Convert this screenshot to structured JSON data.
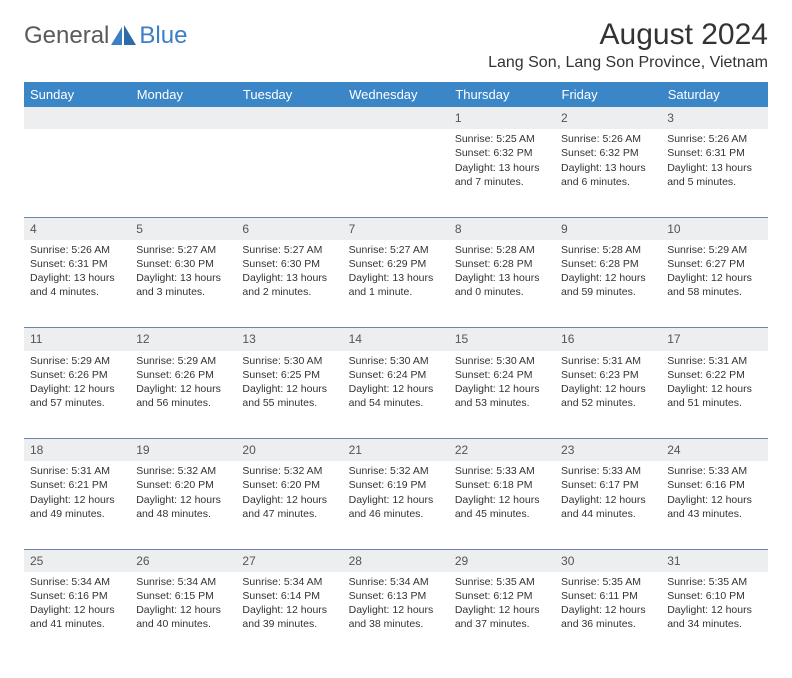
{
  "brand": {
    "part1": "General",
    "part2": "Blue",
    "text_color": "#5a5a5a",
    "accent_color": "#3b7fc4"
  },
  "title": "August 2024",
  "location": "Lang Son, Lang Son Province, Vietnam",
  "header_bg": "#3b86c7",
  "daynum_bg": "#eceeef",
  "border_color": "#6a87a8",
  "weekdays": [
    "Sunday",
    "Monday",
    "Tuesday",
    "Wednesday",
    "Thursday",
    "Friday",
    "Saturday"
  ],
  "weeks": [
    {
      "nums": [
        "",
        "",
        "",
        "",
        "1",
        "2",
        "3"
      ],
      "cells": [
        null,
        null,
        null,
        null,
        {
          "sunrise": "5:25 AM",
          "sunset": "6:32 PM",
          "daylight": "13 hours and 7 minutes."
        },
        {
          "sunrise": "5:26 AM",
          "sunset": "6:32 PM",
          "daylight": "13 hours and 6 minutes."
        },
        {
          "sunrise": "5:26 AM",
          "sunset": "6:31 PM",
          "daylight": "13 hours and 5 minutes."
        }
      ]
    },
    {
      "nums": [
        "4",
        "5",
        "6",
        "7",
        "8",
        "9",
        "10"
      ],
      "cells": [
        {
          "sunrise": "5:26 AM",
          "sunset": "6:31 PM",
          "daylight": "13 hours and 4 minutes."
        },
        {
          "sunrise": "5:27 AM",
          "sunset": "6:30 PM",
          "daylight": "13 hours and 3 minutes."
        },
        {
          "sunrise": "5:27 AM",
          "sunset": "6:30 PM",
          "daylight": "13 hours and 2 minutes."
        },
        {
          "sunrise": "5:27 AM",
          "sunset": "6:29 PM",
          "daylight": "13 hours and 1 minute."
        },
        {
          "sunrise": "5:28 AM",
          "sunset": "6:28 PM",
          "daylight": "13 hours and 0 minutes."
        },
        {
          "sunrise": "5:28 AM",
          "sunset": "6:28 PM",
          "daylight": "12 hours and 59 minutes."
        },
        {
          "sunrise": "5:29 AM",
          "sunset": "6:27 PM",
          "daylight": "12 hours and 58 minutes."
        }
      ]
    },
    {
      "nums": [
        "11",
        "12",
        "13",
        "14",
        "15",
        "16",
        "17"
      ],
      "cells": [
        {
          "sunrise": "5:29 AM",
          "sunset": "6:26 PM",
          "daylight": "12 hours and 57 minutes."
        },
        {
          "sunrise": "5:29 AM",
          "sunset": "6:26 PM",
          "daylight": "12 hours and 56 minutes."
        },
        {
          "sunrise": "5:30 AM",
          "sunset": "6:25 PM",
          "daylight": "12 hours and 55 minutes."
        },
        {
          "sunrise": "5:30 AM",
          "sunset": "6:24 PM",
          "daylight": "12 hours and 54 minutes."
        },
        {
          "sunrise": "5:30 AM",
          "sunset": "6:24 PM",
          "daylight": "12 hours and 53 minutes."
        },
        {
          "sunrise": "5:31 AM",
          "sunset": "6:23 PM",
          "daylight": "12 hours and 52 minutes."
        },
        {
          "sunrise": "5:31 AM",
          "sunset": "6:22 PM",
          "daylight": "12 hours and 51 minutes."
        }
      ]
    },
    {
      "nums": [
        "18",
        "19",
        "20",
        "21",
        "22",
        "23",
        "24"
      ],
      "cells": [
        {
          "sunrise": "5:31 AM",
          "sunset": "6:21 PM",
          "daylight": "12 hours and 49 minutes."
        },
        {
          "sunrise": "5:32 AM",
          "sunset": "6:20 PM",
          "daylight": "12 hours and 48 minutes."
        },
        {
          "sunrise": "5:32 AM",
          "sunset": "6:20 PM",
          "daylight": "12 hours and 47 minutes."
        },
        {
          "sunrise": "5:32 AM",
          "sunset": "6:19 PM",
          "daylight": "12 hours and 46 minutes."
        },
        {
          "sunrise": "5:33 AM",
          "sunset": "6:18 PM",
          "daylight": "12 hours and 45 minutes."
        },
        {
          "sunrise": "5:33 AM",
          "sunset": "6:17 PM",
          "daylight": "12 hours and 44 minutes."
        },
        {
          "sunrise": "5:33 AM",
          "sunset": "6:16 PM",
          "daylight": "12 hours and 43 minutes."
        }
      ]
    },
    {
      "nums": [
        "25",
        "26",
        "27",
        "28",
        "29",
        "30",
        "31"
      ],
      "cells": [
        {
          "sunrise": "5:34 AM",
          "sunset": "6:16 PM",
          "daylight": "12 hours and 41 minutes."
        },
        {
          "sunrise": "5:34 AM",
          "sunset": "6:15 PM",
          "daylight": "12 hours and 40 minutes."
        },
        {
          "sunrise": "5:34 AM",
          "sunset": "6:14 PM",
          "daylight": "12 hours and 39 minutes."
        },
        {
          "sunrise": "5:34 AM",
          "sunset": "6:13 PM",
          "daylight": "12 hours and 38 minutes."
        },
        {
          "sunrise": "5:35 AM",
          "sunset": "6:12 PM",
          "daylight": "12 hours and 37 minutes."
        },
        {
          "sunrise": "5:35 AM",
          "sunset": "6:11 PM",
          "daylight": "12 hours and 36 minutes."
        },
        {
          "sunrise": "5:35 AM",
          "sunset": "6:10 PM",
          "daylight": "12 hours and 34 minutes."
        }
      ]
    }
  ]
}
